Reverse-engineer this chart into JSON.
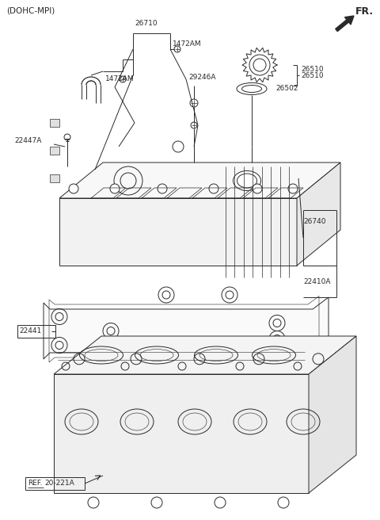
{
  "bg_color": "#ffffff",
  "line_color": "#2a2a2a",
  "label_color": "#2a2a2a",
  "labels": {
    "dohc": "(DOHC-MPI)",
    "fr": "FR.",
    "26710": "26710",
    "1472AM_top": "1472AM",
    "1472AM_bot": "1472AM",
    "29246A": "29246A",
    "22447A": "22447A",
    "26510": "26510",
    "26502": "26502",
    "26740": "26740",
    "22410A": "22410A",
    "22441": "22441",
    "ref": "REF.",
    "ref2": "20-221A"
  },
  "figsize": [
    4.8,
    6.56
  ],
  "dpi": 100
}
